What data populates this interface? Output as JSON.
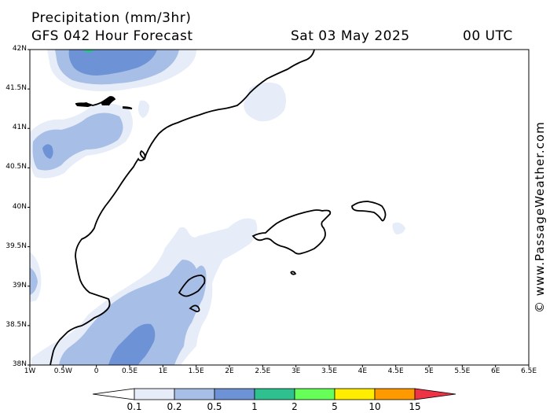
{
  "header": {
    "title": "Precipitation (mm/3hr)",
    "model_line": "GFS 042 Hour Forecast",
    "date": "Sat 03 May 2025",
    "time": "00 UTC"
  },
  "axes": {
    "lat_ticks": [
      "42N",
      "41.5N",
      "41N",
      "40.5N",
      "40N",
      "39.5N",
      "39N",
      "38.5N",
      "38N"
    ],
    "lon_ticks": [
      "1W",
      "0.5W",
      "0",
      "0.5E",
      "1E",
      "1.5E",
      "2E",
      "2.5E",
      "3E",
      "3.5E",
      "4E",
      "4.5E",
      "5E",
      "5.5E",
      "6E",
      "6.5E"
    ],
    "lat_range": [
      38,
      42
    ],
    "lon_range": [
      -1,
      6.5
    ]
  },
  "legend": {
    "labels": [
      "0.1",
      "0.2",
      "0.5",
      "1",
      "2",
      "5",
      "10",
      "15"
    ],
    "colors": [
      "#ffffff",
      "#e6ecf8",
      "#a7bee6",
      "#6d92d6",
      "#2ec18f",
      "#66ff57",
      "#ffee00",
      "#ff9900",
      "#ee3344"
    ]
  },
  "credit": "© www.PassageWeather.com"
}
